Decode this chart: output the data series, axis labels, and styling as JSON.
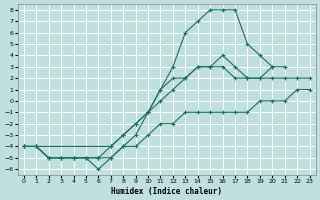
{
  "xlabel": "Humidex (Indice chaleur)",
  "background_color": "#c0e0e0",
  "grid_color": "#ffffff",
  "line_color": "#1a7060",
  "xlim": [
    -0.5,
    23.5
  ],
  "ylim": [
    -6.5,
    8.5
  ],
  "yticks": [
    8,
    7,
    6,
    5,
    4,
    3,
    2,
    1,
    0,
    -1,
    -2,
    -3,
    -4,
    -5,
    -6
  ],
  "xticks": [
    0,
    1,
    2,
    3,
    4,
    5,
    6,
    7,
    8,
    9,
    10,
    11,
    12,
    13,
    14,
    15,
    16,
    17,
    18,
    19,
    20,
    21,
    22,
    23
  ],
  "line1_x": [
    0,
    1,
    2,
    3,
    4,
    5,
    6,
    7,
    8,
    9,
    10,
    11,
    12,
    13,
    14,
    15,
    16,
    17,
    18,
    19,
    20,
    21,
    22,
    23
  ],
  "line1_y": [
    -4,
    -4,
    -5,
    -5,
    -5,
    -5,
    -5,
    -5,
    -4,
    -4,
    -3,
    -2,
    -2,
    -1,
    -1,
    -1,
    -1,
    -1,
    -1,
    0,
    0,
    0,
    1,
    1
  ],
  "line2_x": [
    0,
    1,
    2,
    3,
    4,
    5,
    6,
    7,
    8,
    9,
    10,
    11,
    12,
    13,
    14,
    15,
    16,
    17,
    18,
    19,
    20,
    21,
    22,
    23
  ],
  "line2_y": [
    -4,
    -4,
    -5,
    -5,
    -5,
    -5,
    -5,
    -4,
    -3,
    -2,
    -1,
    0,
    1,
    2,
    3,
    3,
    3,
    2,
    2,
    2,
    2,
    2,
    2,
    2
  ],
  "line3_x": [
    0,
    1,
    2,
    3,
    4,
    5,
    6,
    7,
    8,
    9,
    10,
    11,
    12,
    13,
    14,
    15,
    16,
    17,
    18,
    19,
    20,
    21
  ],
  "line3_y": [
    -4,
    -4,
    -5,
    -5,
    -5,
    -5,
    -6,
    -5,
    -4,
    -3,
    -1,
    1,
    3,
    6,
    7,
    8,
    8,
    8,
    5,
    4,
    3,
    3
  ],
  "line4_x": [
    0,
    7,
    8,
    9,
    10,
    11,
    12,
    13,
    14,
    15,
    16,
    17,
    18,
    19,
    20
  ],
  "line4_y": [
    -4,
    -4,
    -3,
    -2,
    -1,
    1,
    2,
    2,
    3,
    3,
    4,
    3,
    2,
    2,
    3
  ]
}
